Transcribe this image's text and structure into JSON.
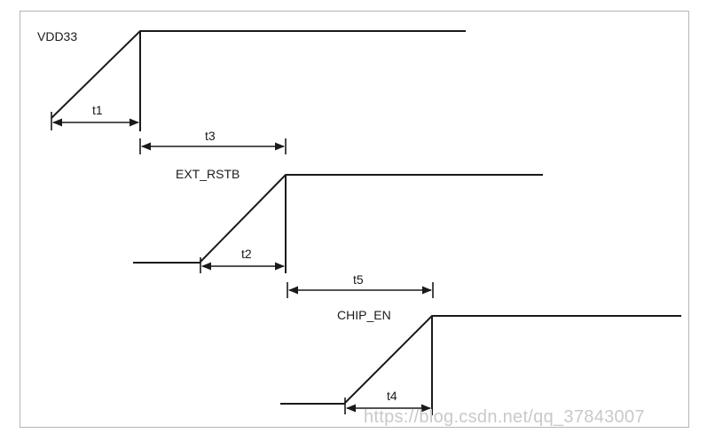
{
  "signals": {
    "vdd33": "VDD33",
    "ext_rstb": "EXT_RSTB",
    "chip_en": "CHIP_EN"
  },
  "timings": {
    "t1": "t1",
    "t2": "t2",
    "t3": "t3",
    "t4": "t4",
    "t5": "t5"
  },
  "watermark": "https://blog.csdn.net/qq_37843007"
}
